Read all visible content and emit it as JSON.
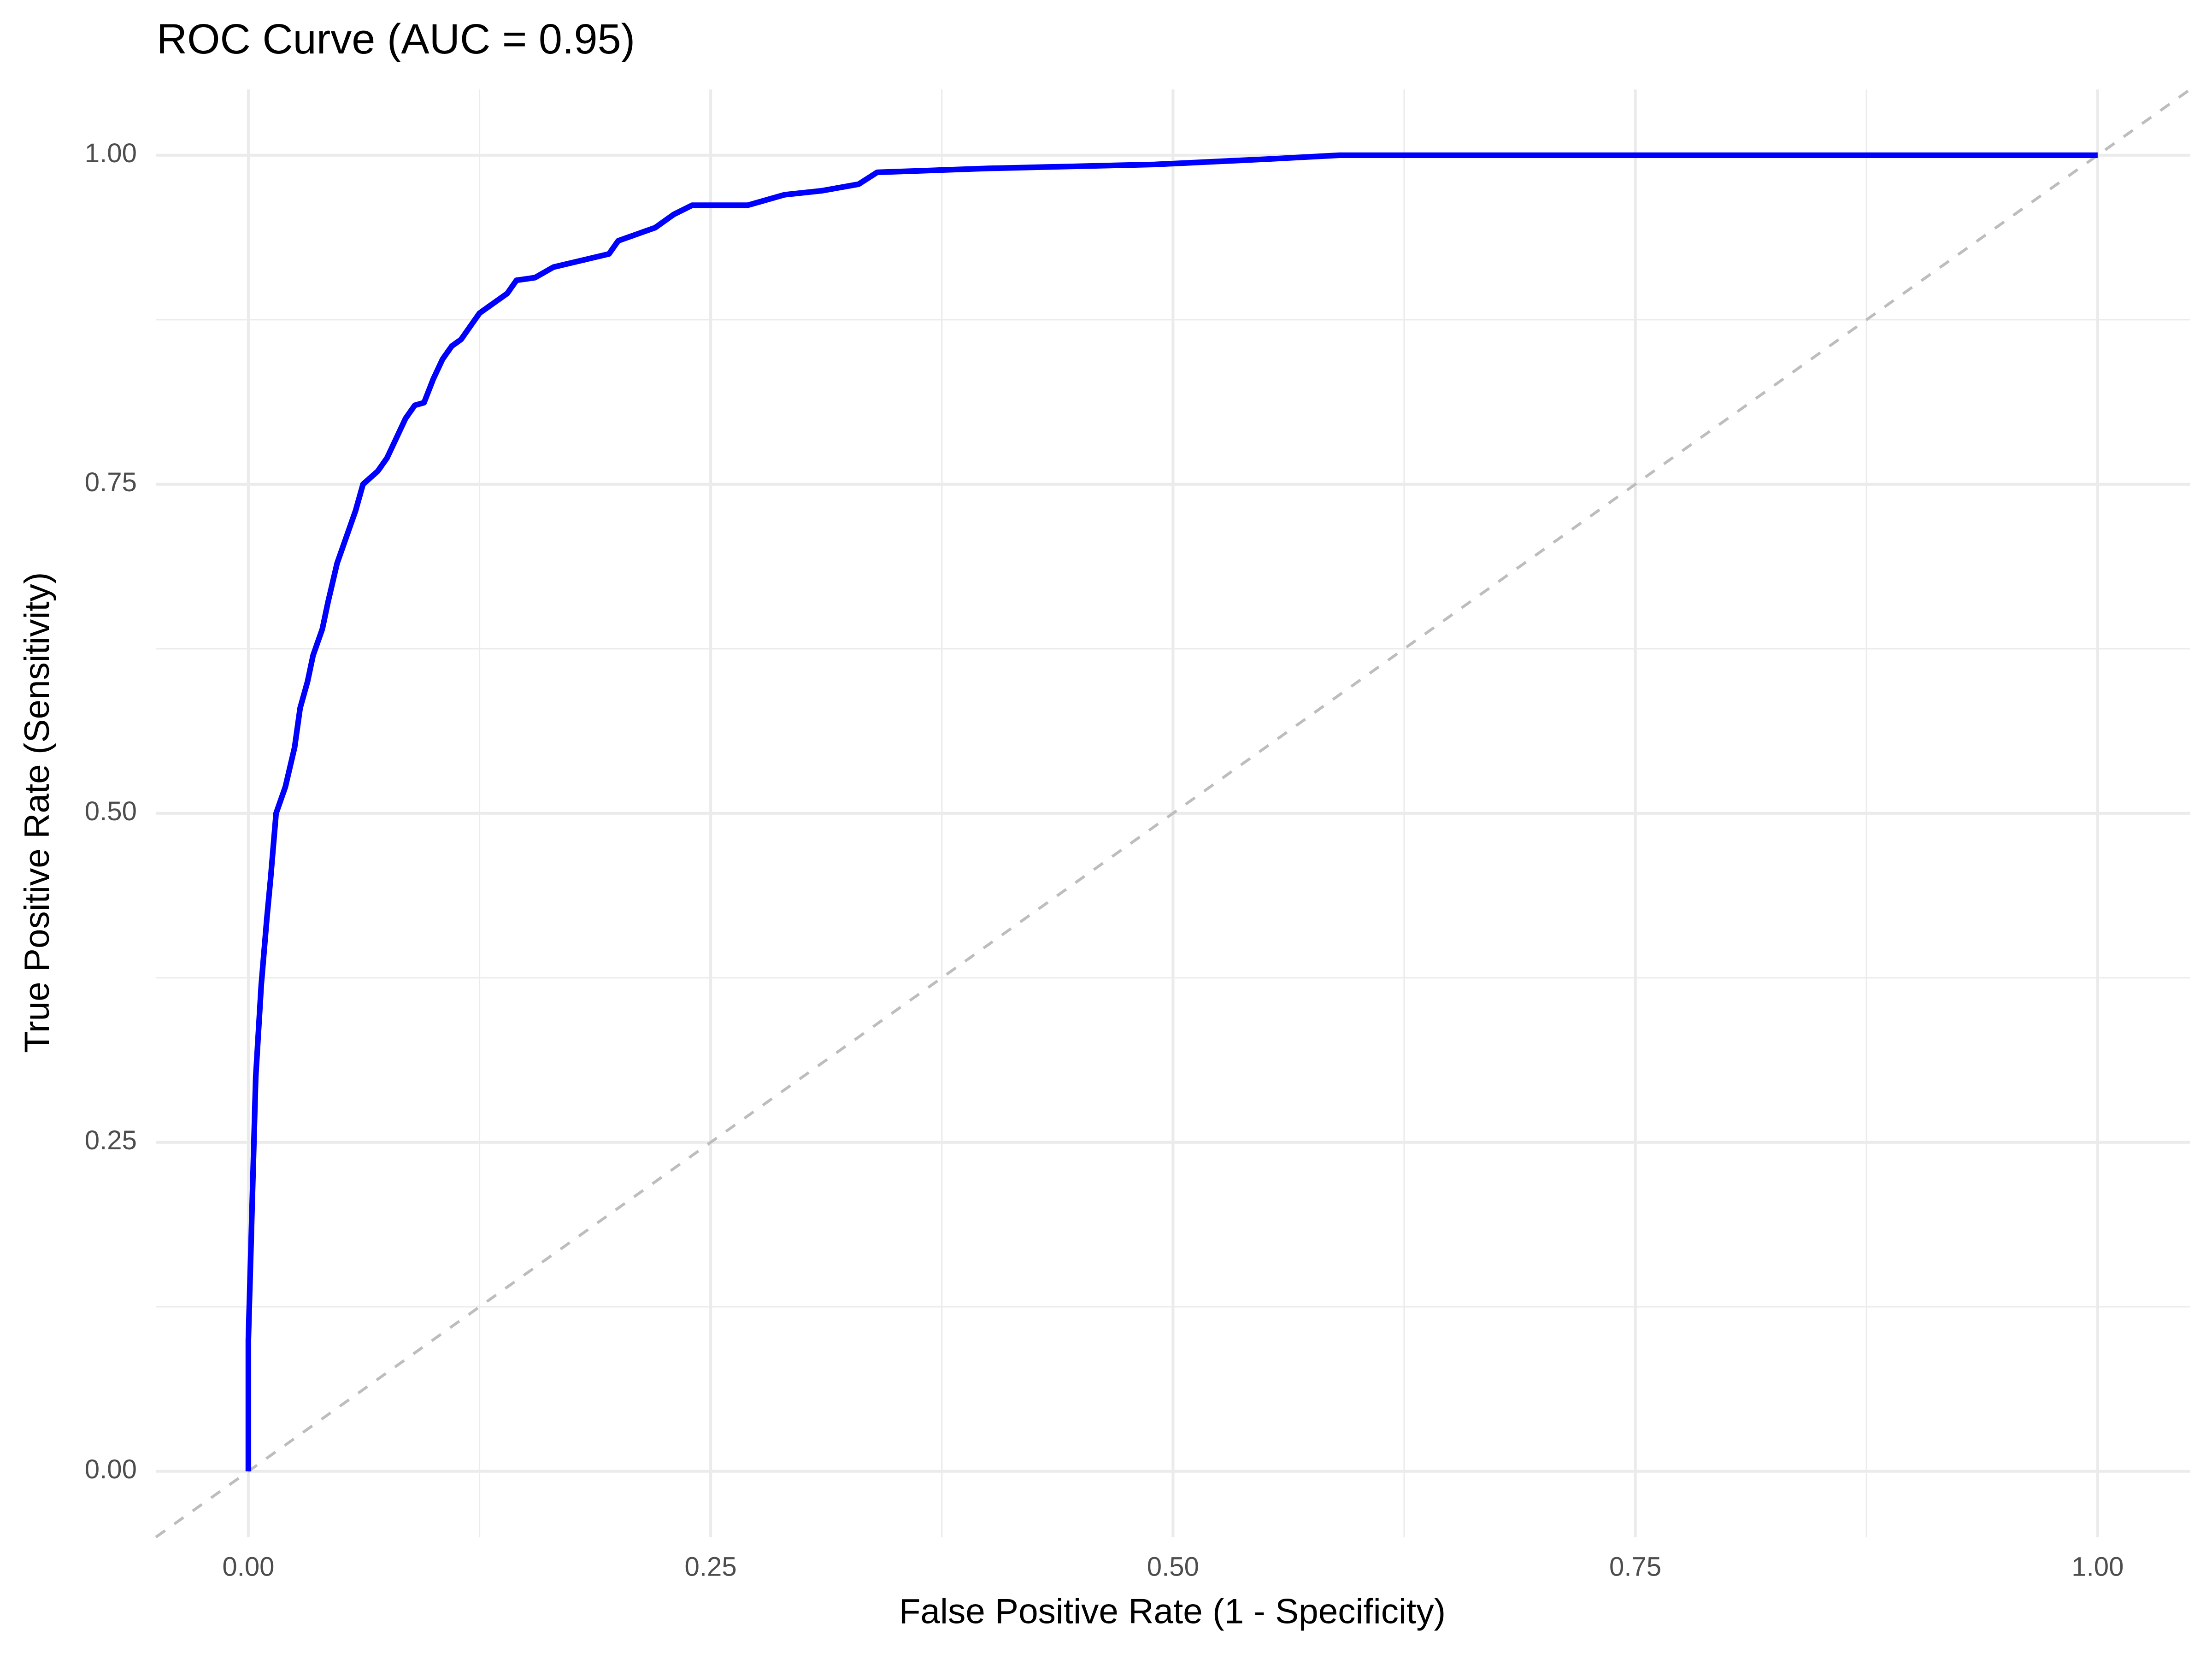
{
  "chart_data": {
    "type": "line",
    "title": "ROC Curve (AUC = 0.95)",
    "x_label": "False Positive Rate (1 - Specificity)",
    "y_label": "True Positive Rate (Sensitivity)",
    "x": [
      0,
      0,
      0.002,
      0.004,
      0.007,
      0.01,
      0.012,
      0.015,
      0.02,
      0.025,
      0.028,
      0.032,
      0.035,
      0.04,
      0.043,
      0.048,
      0.053,
      0.058,
      0.062,
      0.07,
      0.075,
      0.08,
      0.085,
      0.09,
      0.095,
      0.1,
      0.105,
      0.11,
      0.115,
      0.12,
      0.125,
      0.13,
      0.135,
      0.14,
      0.145,
      0.155,
      0.165,
      0.18,
      0.195,
      0.2,
      0.21,
      0.22,
      0.23,
      0.24,
      0.27,
      0.29,
      0.31,
      0.33,
      0.34,
      0.4,
      0.49,
      0.55,
      0.59,
      1.0
    ],
    "values": [
      0,
      0.1,
      0.2,
      0.3,
      0.37,
      0.42,
      0.45,
      0.5,
      0.52,
      0.55,
      0.58,
      0.6,
      0.62,
      0.64,
      0.66,
      0.69,
      0.71,
      0.73,
      0.75,
      0.76,
      0.77,
      0.785,
      0.8,
      0.81,
      0.812,
      0.83,
      0.845,
      0.855,
      0.86,
      0.87,
      0.88,
      0.885,
      0.89,
      0.895,
      0.905,
      0.907,
      0.915,
      0.92,
      0.925,
      0.935,
      0.94,
      0.945,
      0.955,
      0.962,
      0.962,
      0.97,
      0.973,
      0.978,
      0.987,
      0.99,
      0.993,
      0.997,
      1.0,
      1.0
    ],
    "color": "#0000ff",
    "reference_color": "#bdbdbd",
    "xlim": [
      -0.05,
      1.05
    ],
    "ylim": [
      -0.05,
      1.05
    ],
    "xticks": [
      {
        "value": 0,
        "label": "0.00"
      },
      {
        "value": 0.25,
        "label": "0.25"
      },
      {
        "value": 0.5,
        "label": "0.50"
      },
      {
        "value": 0.75,
        "label": "0.75"
      },
      {
        "value": 1,
        "label": "1.00"
      }
    ],
    "yticks": [
      {
        "value": 0,
        "label": "0.00"
      },
      {
        "value": 0.25,
        "label": "0.25"
      },
      {
        "value": 0.5,
        "label": "0.50"
      },
      {
        "value": 0.75,
        "label": "0.75"
      },
      {
        "value": 1,
        "label": "1.00"
      }
    ],
    "grid": true
  }
}
